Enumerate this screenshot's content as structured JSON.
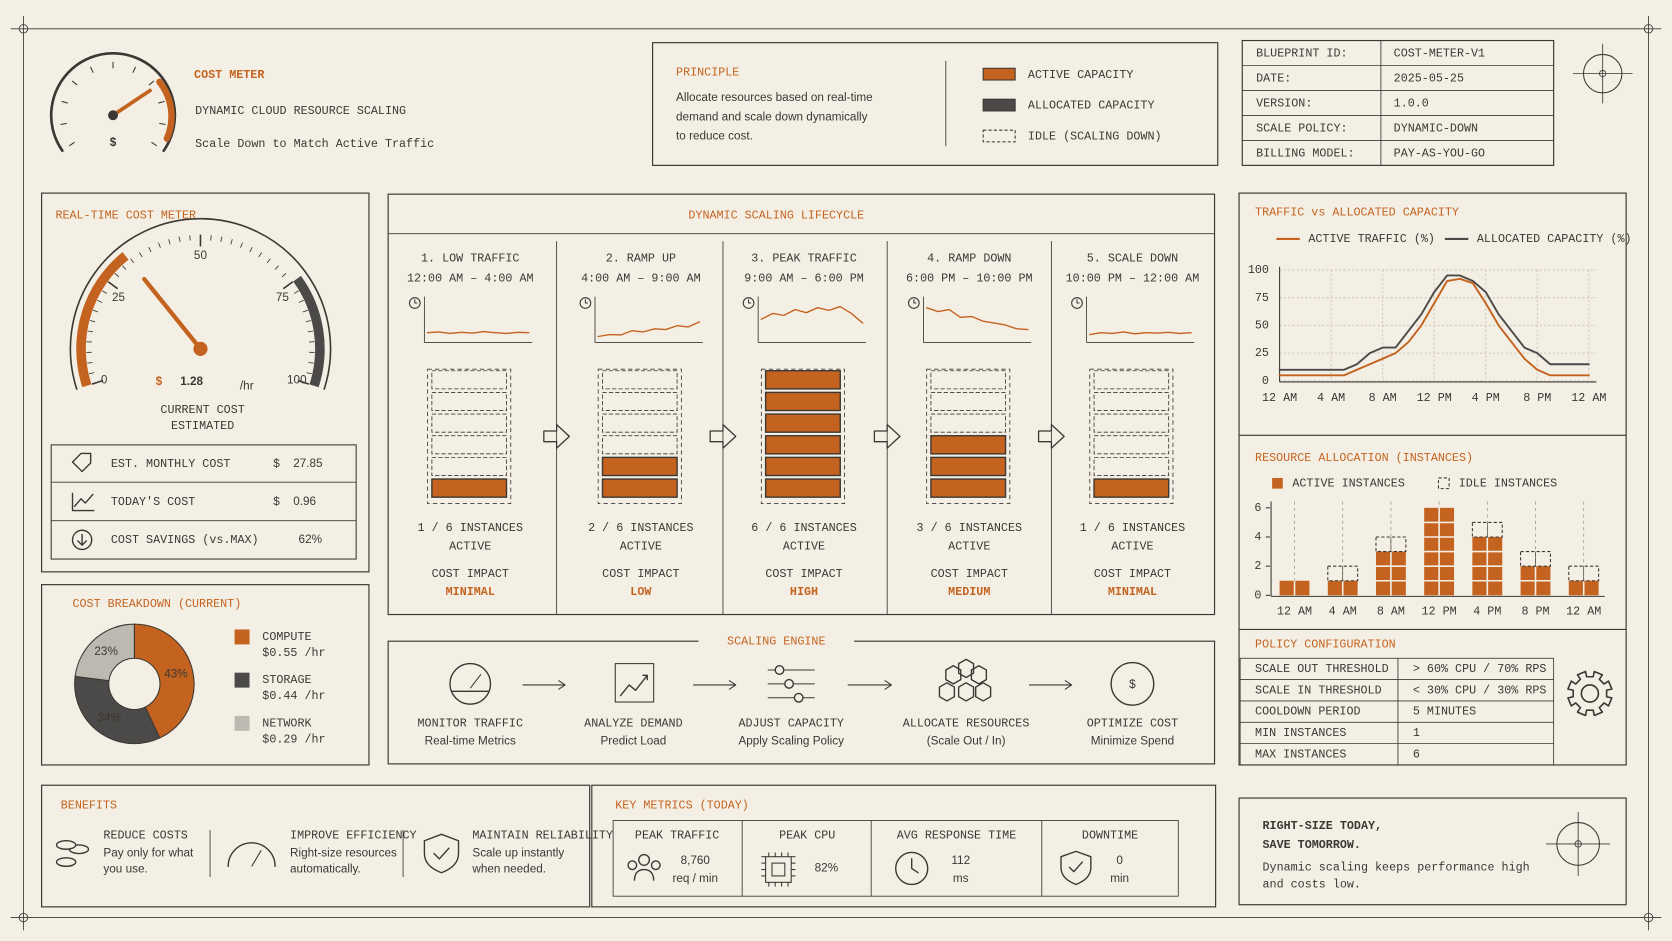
{
  "header": {
    "title": "COST METER",
    "subtitle": "DYNAMIC CLOUD RESOURCE SCALING",
    "tagline": "Scale Down to Match Active Traffic",
    "icon_symbol": "$"
  },
  "principle": {
    "title": "PRINCIPLE",
    "lines": [
      "Allocate resources based on real-time",
      "demand and scale down dynamically",
      "to reduce cost."
    ],
    "legend": [
      "ACTIVE CAPACITY",
      "ALLOCATED CAPACITY",
      "IDLE (SCALING DOWN)"
    ]
  },
  "blueprint": {
    "rows": [
      [
        "BLUEPRINT ID:",
        "COST-METER-V1"
      ],
      [
        "DATE:",
        "2025-05-25"
      ],
      [
        "VERSION:",
        "1.0.0"
      ],
      [
        "SCALE POLICY:",
        "DYNAMIC-DOWN"
      ],
      [
        "BILLING MODEL:",
        "PAY-AS-YOU-GO"
      ]
    ]
  },
  "cost_meter": {
    "title": "REAL-TIME COST METER",
    "gauge": {
      "type": "gauge",
      "value": 32,
      "ylim": [
        0,
        100
      ],
      "yticks": [
        0,
        25,
        50,
        75,
        100
      ]
    },
    "currency": "$",
    "amount": "1.28",
    "unit": "/hr",
    "label": "CURRENT COST",
    "note": "ESTIMATED",
    "rows": [
      {
        "label": "EST. MONTHLY COST",
        "currency": "$",
        "value": "27.85"
      },
      {
        "label": "TODAY'S COST",
        "currency": "$",
        "value": "0.96"
      },
      {
        "label": "COST SAVINGS (vs.MAX)",
        "value": "62%"
      }
    ]
  },
  "cost_breakdown": {
    "title": "COST BREAKDOWN (CURRENT)",
    "chart": {
      "type": "pie",
      "categories": [
        "COMPUTE",
        "STORAGE",
        "NETWORK"
      ],
      "values": [
        43,
        34,
        23
      ],
      "value_labels": [
        "43%",
        "34%",
        "23%"
      ],
      "colors": [
        "#c4631f",
        "#4b4a48",
        "#bdb8b0"
      ],
      "rates": [
        "$0.55 /hr",
        "$0.44 /hr",
        "$0.29 /hr"
      ]
    }
  },
  "lifecycle": {
    "title": "DYNAMIC SCALING LIFECYCLE",
    "sparkline_ylim": [
      0,
      100
    ],
    "stages": [
      {
        "name": "1. LOW TRAFFIC",
        "time": "12:00 AM – 4:00 AM",
        "traffic": [
          20,
          22,
          18,
          21,
          19,
          23,
          20,
          18,
          21,
          20
        ],
        "active": 1,
        "total": 6,
        "instances": "1 / 6 INSTANCES",
        "state": "ACTIVE",
        "impact_label": "COST IMPACT",
        "impact": "MINIMAL"
      },
      {
        "name": "2. RAMP UP",
        "time": "4:00 AM – 9:00 AM",
        "traffic": [
          10,
          15,
          14,
          25,
          22,
          30,
          28,
          38,
          35,
          48
        ],
        "active": 2,
        "total": 6,
        "instances": "2 / 6 INSTANCES",
        "state": "ACTIVE",
        "impact_label": "COST IMPACT",
        "impact": "LOW"
      },
      {
        "name": "3. PEAK TRAFFIC",
        "time": "9:00 AM – 6:00 PM",
        "traffic": [
          55,
          70,
          65,
          80,
          72,
          85,
          78,
          88,
          70,
          45
        ],
        "active": 6,
        "total": 6,
        "instances": "6 / 6 INSTANCES",
        "state": "ACTIVE",
        "impact_label": "COST IMPACT",
        "impact": "HIGH"
      },
      {
        "name": "4. RAMP DOWN",
        "time": "6:00 PM – 10:00 PM",
        "traffic": [
          85,
          75,
          80,
          60,
          62,
          50,
          45,
          40,
          30,
          28
        ],
        "active": 3,
        "total": 6,
        "instances": "3 / 6 INSTANCES",
        "state": "ACTIVE",
        "impact_label": "COST IMPACT",
        "impact": "MEDIUM"
      },
      {
        "name": "5. SCALE DOWN",
        "time": "10:00 PM – 12:00 AM",
        "traffic": [
          15,
          20,
          18,
          22,
          17,
          20,
          19,
          21,
          18,
          20
        ],
        "active": 1,
        "total": 6,
        "instances": "1 / 6 INSTANCES",
        "state": "ACTIVE",
        "impact_label": "COST IMPACT",
        "impact": "MINIMAL"
      }
    ]
  },
  "traffic_chart": {
    "type": "line",
    "title": "TRAFFIC vs ALLOCATED CAPACITY",
    "x": [
      0,
      1,
      2,
      3,
      4,
      5,
      6,
      7,
      8,
      9,
      10,
      11,
      12,
      13,
      14,
      15,
      16,
      17,
      18,
      19,
      20,
      21,
      22,
      23,
      24
    ],
    "series": [
      {
        "name": "ACTIVE TRAFFIC (%)",
        "color": "#c4631f",
        "values": [
          5,
          5,
          5,
          5,
          5,
          5,
          10,
          15,
          20,
          25,
          35,
          50,
          70,
          90,
          92,
          88,
          70,
          50,
          35,
          20,
          10,
          5,
          5,
          5,
          5
        ]
      },
      {
        "name": "ALLOCATED CAPACITY (%)",
        "color": "#4b4a48",
        "values": [
          10,
          10,
          10,
          10,
          10,
          10,
          15,
          25,
          30,
          30,
          45,
          60,
          80,
          95,
          95,
          90,
          80,
          60,
          45,
          30,
          25,
          15,
          15,
          15,
          15
        ]
      }
    ],
    "xlim": [
      0,
      24
    ],
    "xticks": [
      {
        "value": 0,
        "label": "12 AM"
      },
      {
        "value": 4,
        "label": "4 AM"
      },
      {
        "value": 8,
        "label": "8 AM"
      },
      {
        "value": 12,
        "label": "12 PM"
      },
      {
        "value": 16,
        "label": "4 PM"
      },
      {
        "value": 20,
        "label": "8 PM"
      },
      {
        "value": 24,
        "label": "12 AM"
      }
    ],
    "ylim": [
      0,
      100
    ],
    "yticks": [
      0,
      25,
      50,
      75,
      100
    ],
    "grid": true
  },
  "allocation_chart": {
    "type": "bar",
    "stacked": true,
    "title": "RESOURCE ALLOCATION (INSTANCES)",
    "categories": [
      "12 AM",
      "4 AM",
      "8 AM",
      "12 PM",
      "4 PM",
      "8 PM",
      "12 AM"
    ],
    "series": [
      {
        "name": "ACTIVE INSTANCES",
        "color": "#c4631f",
        "values": [
          1,
          1,
          3,
          6,
          4,
          2,
          1
        ]
      },
      {
        "name": "IDLE INSTANCES",
        "color": "none",
        "values": [
          0,
          1,
          1,
          0,
          1,
          1,
          1
        ]
      }
    ],
    "ylim": [
      0,
      6
    ],
    "yticks": [
      0,
      2,
      4,
      6
    ],
    "grid": true
  },
  "policy": {
    "title": "POLICY CONFIGURATION",
    "rows": [
      [
        "SCALE OUT THRESHOLD",
        "> 60% CPU / 70% RPS"
      ],
      [
        "SCALE IN THRESHOLD",
        "< 30% CPU / 30% RPS"
      ],
      [
        "COOLDOWN PERIOD",
        "5 MINUTES"
      ],
      [
        "MIN INSTANCES",
        "1"
      ],
      [
        "MAX INSTANCES",
        "6"
      ]
    ]
  },
  "engine": {
    "title": "SCALING ENGINE",
    "symbol": "$",
    "steps": [
      {
        "name": "MONITOR TRAFFIC",
        "sub": "Real-time Metrics"
      },
      {
        "name": "ANALYZE DEMAND",
        "sub": "Predict Load"
      },
      {
        "name": "ADJUST CAPACITY",
        "sub": "Apply Scaling Policy"
      },
      {
        "name": "ALLOCATE RESOURCES",
        "sub": "(Scale Out / In)"
      },
      {
        "name": "OPTIMIZE COST",
        "sub": "Minimize Spend"
      }
    ]
  },
  "benefits": {
    "title": "BENEFITS",
    "items": [
      {
        "title": "REDUCE COSTS",
        "lines": [
          "Pay only for what",
          "you use."
        ]
      },
      {
        "title": "IMPROVE EFFICIENCY",
        "lines": [
          "Right-size resources",
          "automatically."
        ]
      },
      {
        "title": "MAINTAIN RELIABILITY",
        "lines": [
          "Scale up instantly",
          "when needed."
        ]
      }
    ]
  },
  "metrics": {
    "title": "KEY METRICS (TODAY)",
    "items": [
      {
        "name": "PEAK TRAFFIC",
        "value": "8,760",
        "unit": "req / min"
      },
      {
        "name": "PEAK CPU",
        "value": "82%"
      },
      {
        "name": "AVG RESPONSE TIME",
        "value": "112",
        "unit": "ms"
      },
      {
        "name": "DOWNTIME",
        "value": "0",
        "unit": "min"
      }
    ]
  },
  "footer": {
    "headline": [
      "RIGHT-SIZE TODAY,",
      "SAVE TOMORROW."
    ],
    "lines": [
      "Dynamic scaling keeps performance high",
      "and costs low."
    ]
  }
}
